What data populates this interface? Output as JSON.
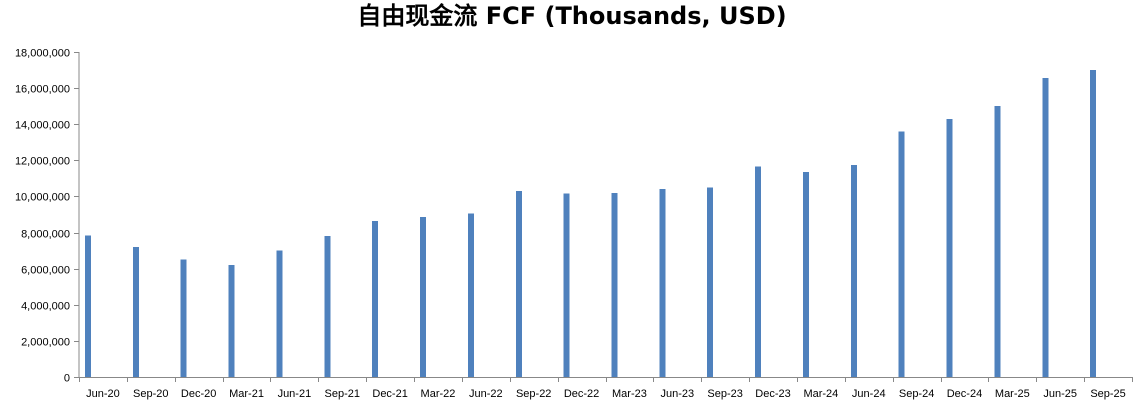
{
  "chart_data": {
    "type": "bar",
    "title": "自由现金流 FCF (Thousands, USD)",
    "xlabel": "",
    "ylabel": "",
    "ylim": [
      0,
      18000000
    ],
    "y_ticks": [
      0,
      2000000,
      4000000,
      6000000,
      8000000,
      10000000,
      12000000,
      14000000,
      16000000,
      18000000
    ],
    "y_tick_labels": [
      "0",
      "2,000,000",
      "4,000,000",
      "6,000,000",
      "8,000,000",
      "10,000,000",
      "12,000,000",
      "14,000,000",
      "16,000,000",
      "18,000,000"
    ],
    "grid": false,
    "legend": "none",
    "bar_color": "#4f81bd",
    "categories": [
      "Jun-20",
      "Sep-20",
      "Dec-20",
      "Mar-21",
      "Jun-21",
      "Sep-21",
      "Dec-21",
      "Mar-22",
      "Jun-22",
      "Sep-22",
      "Dec-22",
      "Mar-23",
      "Jun-23",
      "Sep-23",
      "Dec-23",
      "Mar-24",
      "Jun-24",
      "Sep-24",
      "Dec-24",
      "Mar-25",
      "Jun-25",
      "Sep-25"
    ],
    "values": [
      7850000,
      7200000,
      6500000,
      6200000,
      7000000,
      7800000,
      8650000,
      8850000,
      9050000,
      10300000,
      10150000,
      10200000,
      10400000,
      10500000,
      11650000,
      11350000,
      11750000,
      13600000,
      14300000,
      15000000,
      16550000,
      17000000
    ]
  }
}
